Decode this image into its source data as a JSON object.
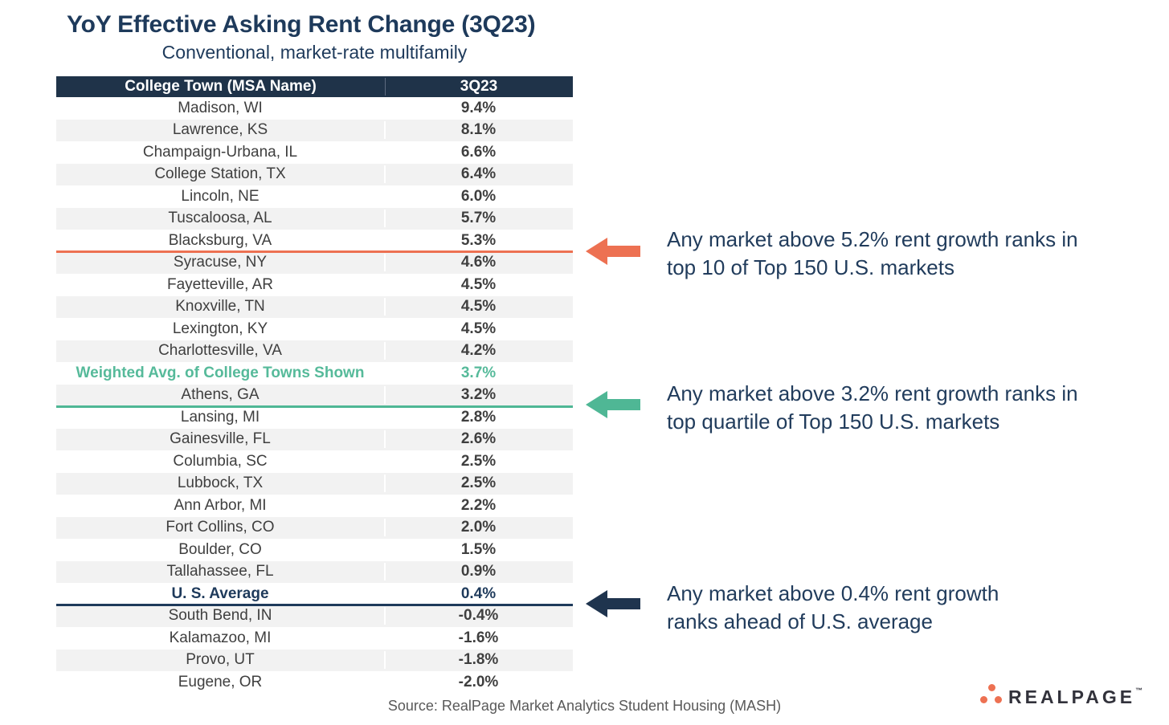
{
  "title": "YoY Effective Asking Rent Change (3Q23)",
  "subtitle": "Conventional, market-rate multifamily",
  "table": {
    "columns": [
      "College Town (MSA Name)",
      "3Q23"
    ],
    "rows": [
      {
        "name": "Madison, WI",
        "value": "9.4%"
      },
      {
        "name": "Lawrence, KS",
        "value": "8.1%"
      },
      {
        "name": "Champaign-Urbana, IL",
        "value": "6.6%"
      },
      {
        "name": "College Station, TX",
        "value": "6.4%"
      },
      {
        "name": "Lincoln, NE",
        "value": "6.0%"
      },
      {
        "name": "Tuscaloosa, AL",
        "value": "5.7%"
      },
      {
        "name": "Blacksburg, VA",
        "value": "5.3%",
        "divider_after": "orange"
      },
      {
        "name": "Syracuse, NY",
        "value": "4.6%"
      },
      {
        "name": "Fayetteville, AR",
        "value": "4.5%"
      },
      {
        "name": "Knoxville, TN",
        "value": "4.5%"
      },
      {
        "name": "Lexington, KY",
        "value": "4.5%"
      },
      {
        "name": "Charlottesville, VA",
        "value": "4.2%"
      },
      {
        "name": "Weighted Avg. of College Towns Shown",
        "value": "3.7%",
        "style": "weighted"
      },
      {
        "name": "Athens, GA",
        "value": "3.2%",
        "divider_after": "teal"
      },
      {
        "name": "Lansing, MI",
        "value": "2.8%"
      },
      {
        "name": "Gainesville, FL",
        "value": "2.6%"
      },
      {
        "name": "Columbia, SC",
        "value": "2.5%"
      },
      {
        "name": "Lubbock, TX",
        "value": "2.5%"
      },
      {
        "name": "Ann Arbor, MI",
        "value": "2.2%"
      },
      {
        "name": "Fort Collins, CO",
        "value": "2.0%"
      },
      {
        "name": "Boulder, CO",
        "value": "1.5%"
      },
      {
        "name": "Tallahassee, FL",
        "value": "0.9%"
      },
      {
        "name": "U. S. Average",
        "value": "0.4%",
        "style": "us-average",
        "divider_after": "navy"
      },
      {
        "name": "South Bend, IN",
        "value": "-0.4%"
      },
      {
        "name": "Kalamazoo, MI",
        "value": "-1.6%"
      },
      {
        "name": "Provo, UT",
        "value": "-1.8%"
      },
      {
        "name": "Eugene, OR",
        "value": "-2.0%"
      }
    ]
  },
  "annotations": [
    {
      "line1": "Any market above 5.2% rent growth ranks in",
      "line2": "top 10 of Top 150 U.S. markets",
      "color": "#ED7152"
    },
    {
      "line1": "Any market above 3.2% rent growth ranks in",
      "line2": "top quartile of Top 150 U.S. markets",
      "color": "#4FB795"
    },
    {
      "line1": "Any market above 0.4% rent growth",
      "line2": "ranks ahead of U.S. average",
      "color": "#1F344E"
    }
  ],
  "source": "Source: RealPage Market Analytics Student Housing (MASH)",
  "logo": {
    "text": "REALPAGE",
    "trademark": "™",
    "dots_color": "#ED7152"
  },
  "colors": {
    "navy": "#1E3A5B",
    "header_bg": "#1F3349",
    "orange": "#ED7152",
    "teal": "#4FB795",
    "teal_text": "#56BA9A",
    "row_alt_bg": "#F2F2F2",
    "body_text": "#3F3F3F",
    "source_text": "#595959",
    "logo_text": "#32323B"
  },
  "chart_data": {
    "type": "table",
    "title": "YoY Effective Asking Rent Change (3Q23)",
    "subtitle": "Conventional, market-rate multifamily",
    "columns": [
      "College Town (MSA Name)",
      "3Q23"
    ],
    "unit": "%",
    "categories": [
      "Madison, WI",
      "Lawrence, KS",
      "Champaign-Urbana, IL",
      "College Station, TX",
      "Lincoln, NE",
      "Tuscaloosa, AL",
      "Blacksburg, VA",
      "Syracuse, NY",
      "Fayetteville, AR",
      "Knoxville, TN",
      "Lexington, KY",
      "Charlottesville, VA",
      "Weighted Avg. of College Towns Shown",
      "Athens, GA",
      "Lansing, MI",
      "Gainesville, FL",
      "Columbia, SC",
      "Lubbock, TX",
      "Ann Arbor, MI",
      "Fort Collins, CO",
      "Boulder, CO",
      "Tallahassee, FL",
      "U. S. Average",
      "South Bend, IN",
      "Kalamazoo, MI",
      "Provo, UT",
      "Eugene, OR"
    ],
    "values": [
      9.4,
      8.1,
      6.6,
      6.4,
      6.0,
      5.7,
      5.3,
      4.6,
      4.5,
      4.5,
      4.5,
      4.2,
      3.7,
      3.2,
      2.8,
      2.6,
      2.5,
      2.5,
      2.2,
      2.0,
      1.5,
      0.9,
      0.4,
      -0.4,
      -1.6,
      -1.8,
      -2.0
    ],
    "thresholds": [
      {
        "after_row": "Blacksburg, VA",
        "threshold_pct": 5.2,
        "color": "#ED7152",
        "note": "Any market above 5.2% rent growth ranks in top 10 of Top 150 U.S. markets"
      },
      {
        "after_row": "Athens, GA",
        "threshold_pct": 3.2,
        "color": "#4FB795",
        "note": "Any market above 3.2% rent growth ranks in top quartile of Top 150 U.S. markets"
      },
      {
        "after_row": "U. S. Average",
        "threshold_pct": 0.4,
        "color": "#1F344E",
        "note": "Any market above 0.4% rent growth ranks ahead of U.S. average"
      }
    ],
    "source": "Source: RealPage Market Analytics Student Housing (MASH)"
  }
}
